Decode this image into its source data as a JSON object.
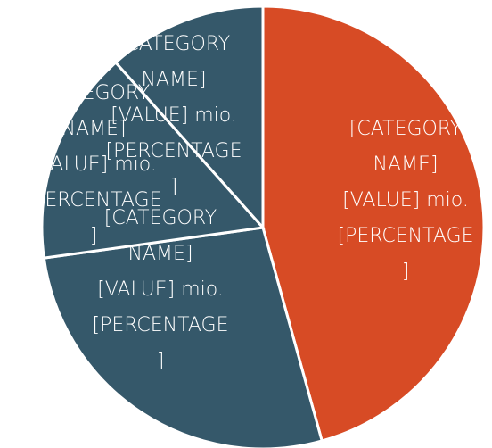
{
  "chart_data": {
    "type": "pie",
    "values": [
      45.7,
      27.1,
      15.6,
      11.6
    ],
    "colors": [
      "#d74b25",
      "#35586a",
      "#35586a",
      "#35586a"
    ],
    "data_labels": [
      [
        "[CATEGORY",
        "NAME]",
        "[VALUE] mio.",
        "[PERCENTAGE",
        "]"
      ],
      [
        "[CATEGORY",
        "NAME]",
        "[VALUE] mio.",
        "[PERCENTAGE",
        "]"
      ],
      [
        "[CATEGORY",
        "NAME]",
        "[VALUE] mio.",
        "[PERCENTAGE",
        "]"
      ],
      [
        "[CATEGORY",
        "NAME]",
        "[VALUE] mio.",
        "[PERCENTAGE",
        "]"
      ]
    ]
  }
}
